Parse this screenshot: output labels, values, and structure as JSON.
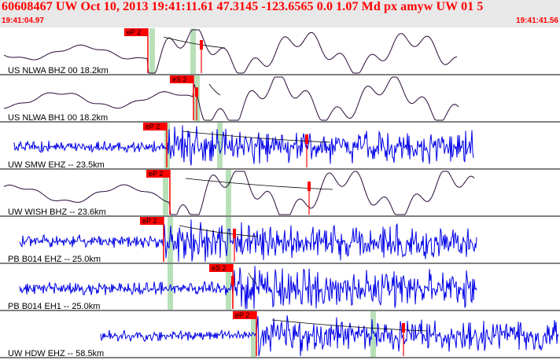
{
  "header": {
    "title": "60608467 UW Oct 10, 2013 19:41:11.61   47.3145 -123.6565  0.0 1.07 Md px amyw UW 01   5",
    "time_start": "19:41:04.97",
    "time_end": "19:41:41.56"
  },
  "colors": {
    "header_text": "#ff0000",
    "header_bg": "#e8e8e8",
    "pick_marker": "#ff0000",
    "window_band": "#b8e0b8",
    "trace_blue": "#0000e6",
    "trace_dark": "#2a0a3a"
  },
  "traces": [
    {
      "label": "US NLWA BHZ 00 18.2km",
      "color": "dark",
      "pick": "eP 2"
    },
    {
      "label": "US NLWA BH1 00 18.2km",
      "color": "dark",
      "pick": "eS 2"
    },
    {
      "label": "UW SMW EHZ -- 23.5km",
      "color": "blue",
      "pick": "eP 2"
    },
    {
      "label": "UW WISH BHZ -- 23.6km",
      "color": "dark",
      "pick": "eP 2"
    },
    {
      "label": "PB B014 EHZ -- 25.0km",
      "color": "blue",
      "pick": "eP 2"
    },
    {
      "label": "PB B014 EH1 -- 25.0km",
      "color": "blue",
      "pick": "eS 2"
    },
    {
      "label": "UW HDW EHZ -- 58.5km",
      "color": "blue",
      "pick": "eP 2"
    }
  ]
}
